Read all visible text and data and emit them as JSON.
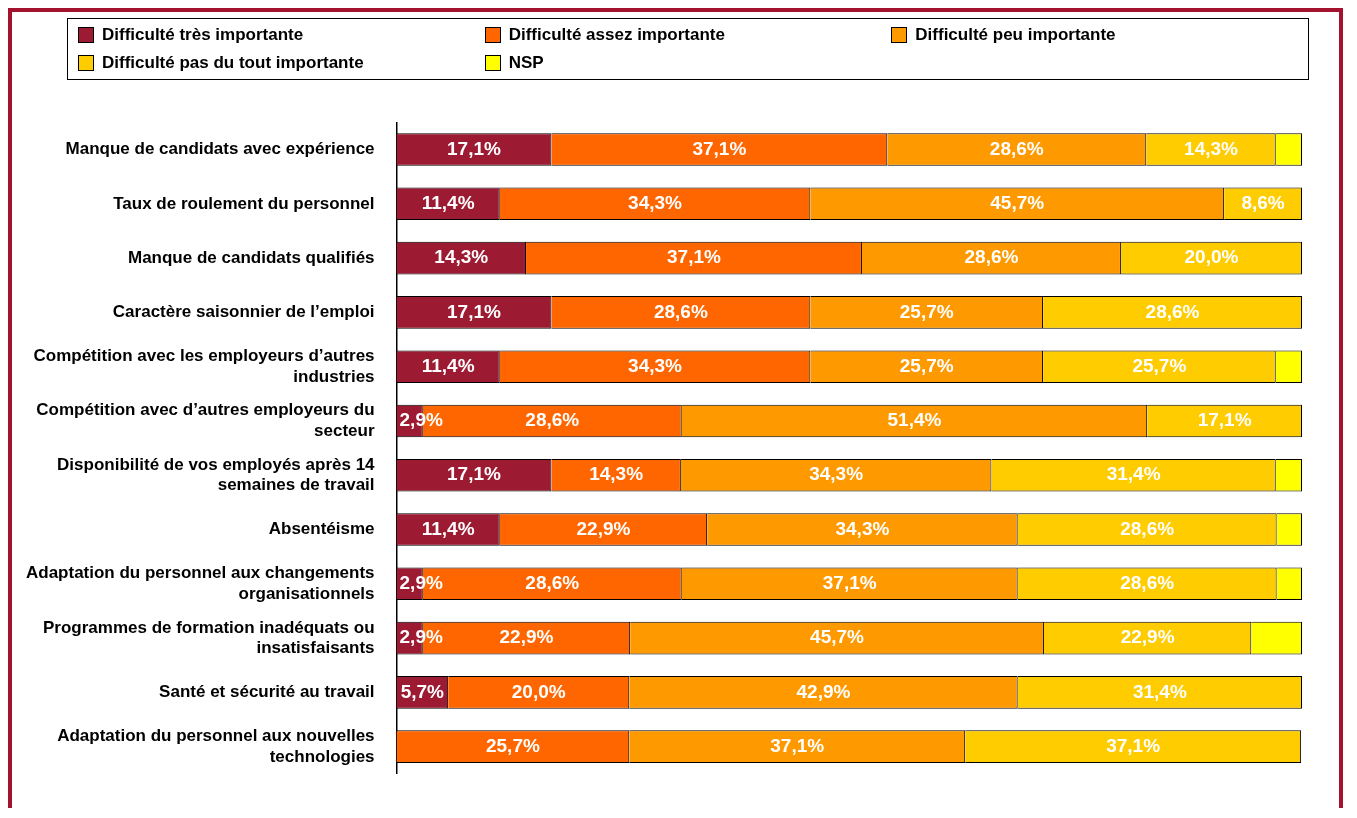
{
  "chart_data": {
    "type": "bar",
    "orientation": "horizontal",
    "stacked": true,
    "data_labels": true,
    "legend": "top",
    "grid": false,
    "categories": [
      "Manque de candidats avec expérience",
      "Taux de roulement du personnel",
      "Manque de candidats qualifiés",
      "Caractère saisonnier de l’emploi",
      "Compétition avec les employeurs d’autres industries",
      "Compétition avec d’autres employeurs du secteur",
      "Disponibilité de vos employés après 14 semaines de travail",
      "Absentéisme",
      "Adaptation du personnel aux changements organisationnels",
      "Programmes de formation inadéquats ou insatisfaisants",
      "Santé et sécurité au travail",
      "Adaptation du personnel aux nouvelles technologies"
    ],
    "series": [
      {
        "name": "Difficulté très importante",
        "color": "#9c1a32",
        "values": [
          17.1,
          11.4,
          14.3,
          17.1,
          11.4,
          2.9,
          17.1,
          11.4,
          2.9,
          2.9,
          5.7,
          0
        ],
        "value_labels": [
          "17,1%",
          "11,4%",
          "14,3%",
          "17,1%",
          "11,4%",
          "2,9%",
          "17,1%",
          "11,4%",
          "2,9%",
          "2,9%",
          "5,7%",
          null
        ]
      },
      {
        "name": "Difficulté assez importante",
        "color": "#ff6600",
        "values": [
          37.1,
          34.3,
          37.1,
          28.6,
          34.3,
          28.6,
          14.3,
          22.9,
          28.6,
          22.9,
          20.0,
          25.7
        ],
        "value_labels": [
          "37,1%",
          "34,3%",
          "37,1%",
          "28,6%",
          "34,3%",
          "28,6%",
          "14,3%",
          "22,9%",
          "28,6%",
          "22,9%",
          "20,0%",
          "25,7%"
        ]
      },
      {
        "name": "Difficulté peu importante",
        "color": "#ff9900",
        "values": [
          28.6,
          45.7,
          28.6,
          25.7,
          25.7,
          51.4,
          34.3,
          34.3,
          37.1,
          45.7,
          42.9,
          37.1
        ],
        "value_labels": [
          "28,6%",
          "45,7%",
          "28,6%",
          "25,7%",
          "25,7%",
          "51,4%",
          "34,3%",
          "34,3%",
          "37,1%",
          "45,7%",
          "42,9%",
          "37,1%"
        ]
      },
      {
        "name": "Difficulté pas du tout importante",
        "color": "#ffcc00",
        "values": [
          14.3,
          8.6,
          20.0,
          28.6,
          25.7,
          17.1,
          31.4,
          28.6,
          28.6,
          22.9,
          31.4,
          37.1
        ],
        "value_labels": [
          "14,3%",
          "8,6%",
          "20,0%",
          "28,6%",
          "25,7%",
          "17,1%",
          "31,4%",
          "28,6%",
          "28,6%",
          "22,9%",
          "31,4%",
          "37,1%"
        ]
      },
      {
        "name": "NSP",
        "color": "#ffff00",
        "values": [
          2.9,
          0,
          0,
          0,
          2.9,
          0,
          2.9,
          2.8,
          2.8,
          5.6,
          0,
          0
        ],
        "value_labels": [
          null,
          null,
          null,
          null,
          null,
          null,
          null,
          null,
          null,
          null,
          null,
          null
        ]
      }
    ]
  }
}
